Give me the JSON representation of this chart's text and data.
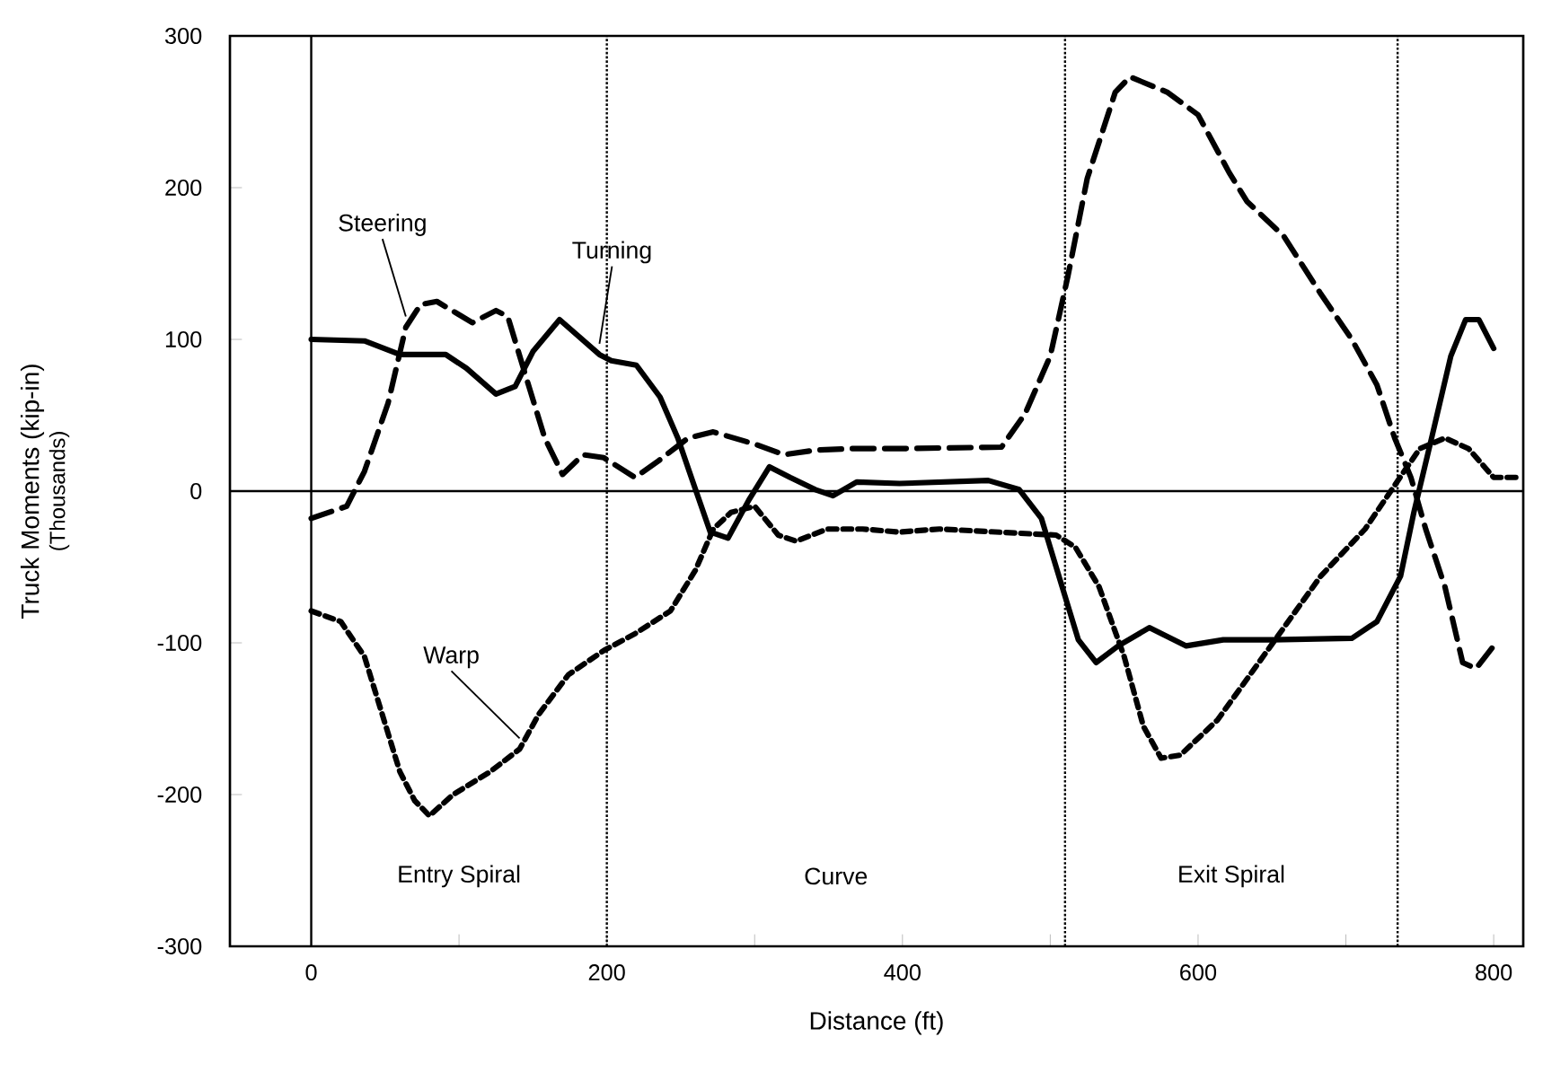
{
  "chart_data": {
    "type": "line",
    "xlabel": "Distance (ft)",
    "ylabel": "Truck Moments (kip-in)",
    "xlim": [
      -55,
      820
    ],
    "ylim": [
      -300,
      300
    ],
    "xticks": [
      0,
      {
        "value": 100,
        "label": null
      },
      200,
      {
        "value": 300,
        "label": null
      },
      400,
      {
        "value": 500,
        "label": null
      },
      600,
      {
        "value": 700,
        "label": null
      },
      800
    ],
    "yticks": [
      -300,
      -200,
      -100,
      0,
      100,
      200,
      300
    ],
    "grid": false,
    "marker": "none",
    "series": [
      {
        "name": "Steering",
        "color": "#000000",
        "line_style": "dashed",
        "x": [
          0,
          24,
          36,
          52,
          64,
          74,
          85,
          109,
          125,
          133,
          146,
          158,
          170,
          184,
          198,
          219,
          235,
          255,
          272,
          300,
          320,
          341,
          365,
          398,
          467,
          483,
          500,
          512,
          525,
          544,
          554,
          579,
          600,
          621,
          633,
          658,
          683,
          704,
          721,
          733,
          744,
          754,
          767,
          779,
          788,
          800
        ],
        "values": [
          -18,
          -10,
          13,
          58,
          108,
          123,
          125,
          111,
          119,
          115,
          73,
          35,
          11,
          24,
          22,
          9,
          20,
          35,
          39,
          31,
          24,
          27,
          28,
          28,
          29,
          51,
          89,
          142,
          206,
          263,
          273,
          263,
          248,
          210,
          191,
          168,
          130,
          100,
          70,
          35,
          9,
          -25,
          -63,
          -113,
          -117,
          -102
        ]
      },
      {
        "name": "Turning",
        "color": "#000000",
        "line_style": "solid",
        "x": [
          0,
          36,
          60,
          91,
          105,
          125,
          138,
          150,
          168,
          195,
          203,
          220,
          236,
          248,
          260,
          270,
          282,
          296,
          310,
          324,
          341,
          353,
          369,
          398,
          458,
          479,
          494,
          508,
          519,
          531,
          546,
          567,
          592,
          617,
          650,
          704,
          721,
          737,
          746,
          758,
          771,
          781,
          790,
          800
        ],
        "values": [
          100,
          99,
          90,
          90,
          81,
          64,
          69,
          92,
          113,
          90,
          86,
          83,
          62,
          35,
          1,
          -27,
          -31,
          -6,
          16,
          9,
          1,
          -3,
          6,
          5,
          7,
          1,
          -18,
          -63,
          -98,
          -113,
          -102,
          -90,
          -102,
          -98,
          -98,
          -97,
          -86,
          -56,
          -14,
          35,
          89,
          113,
          113,
          94
        ]
      },
      {
        "name": "Warp",
        "color": "#000000",
        "line_style": "dotted",
        "x": [
          0,
          20,
          36,
          48,
          60,
          70,
          80,
          96,
          121,
          141,
          154,
          174,
          198,
          219,
          243,
          260,
          272,
          284,
          300,
          316,
          328,
          349,
          373,
          398,
          425,
          504,
          517,
          533,
          550,
          563,
          575,
          588,
          613,
          633,
          658,
          683,
          713,
          738,
          750,
          767,
          783,
          800,
          815
        ],
        "values": [
          -79,
          -86,
          -109,
          -147,
          -185,
          -204,
          -214,
          -200,
          -185,
          -170,
          -147,
          -121,
          -105,
          -94,
          -79,
          -52,
          -25,
          -14,
          -10,
          -29,
          -33,
          -25,
          -25,
          -27,
          -25,
          -29,
          -37,
          -63,
          -109,
          -155,
          -176,
          -174,
          -151,
          -124,
          -90,
          -56,
          -25,
          11,
          28,
          35,
          28,
          9,
          9
        ]
      }
    ],
    "ref_lines": [
      {
        "axis": "x",
        "value": 0,
        "line_style": "solid"
      },
      {
        "axis": "y",
        "value": 0,
        "line_style": "solid"
      },
      {
        "axis": "x",
        "value": 200,
        "line_style": "dotted"
      },
      {
        "axis": "x",
        "value": 510,
        "line_style": "dotted"
      },
      {
        "axis": "x",
        "value": 735,
        "line_style": "dotted"
      }
    ],
    "annotations": [
      "(Thousands)",
      "Entry Spiral",
      "Curve",
      "Exit Spiral"
    ]
  }
}
